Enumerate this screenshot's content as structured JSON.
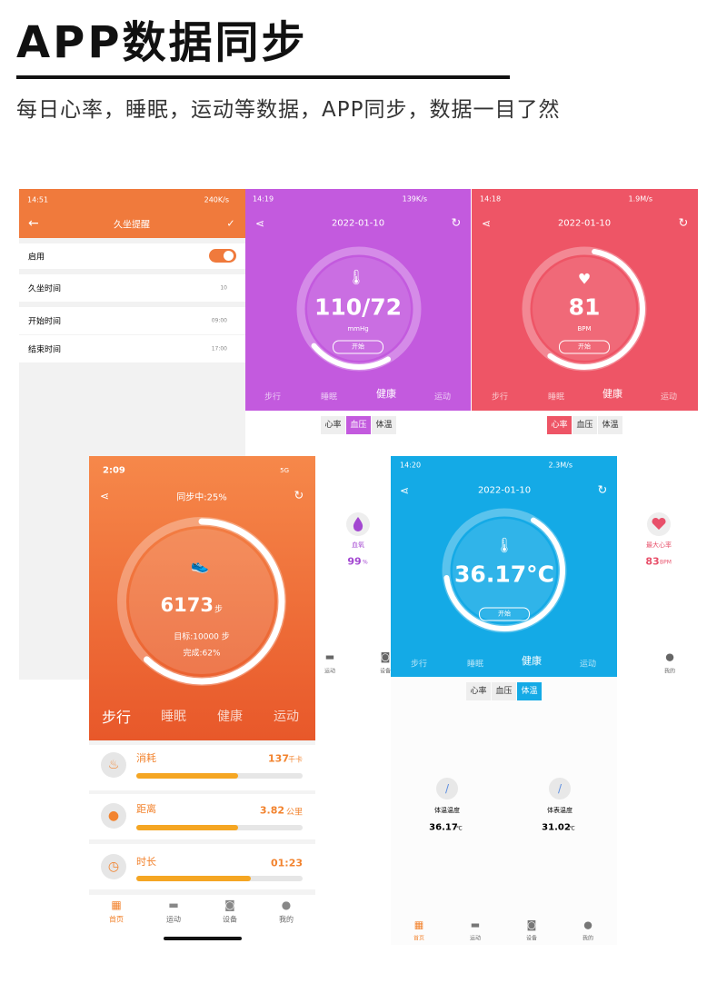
{
  "header": {
    "title": "APP数据同步",
    "subtitle": "每日心率，睡眠，运动等数据，APP同步，数据一目了然"
  },
  "settings_screen": {
    "status": {
      "time": "14:51",
      "speed": "240K/s"
    },
    "title": "久坐提醒",
    "rows": [
      {
        "label": "启用"
      },
      {
        "label": "久坐时间",
        "value": "10"
      },
      {
        "label": "开始时间",
        "value": "09:00"
      },
      {
        "label": "结束时间",
        "value": "17:00"
      }
    ]
  },
  "blood_pressure_screen": {
    "status": {
      "time": "14:19",
      "speed": "139K/s"
    },
    "date": "2022-01-10",
    "reading": "110/72",
    "unit": "mmHg",
    "button": "开始",
    "tabs": [
      "步行",
      "睡眠",
      "健康",
      "运动"
    ],
    "subtabs": [
      "心率",
      "血压",
      "体温"
    ]
  },
  "heart_rate_screen": {
    "status": {
      "time": "14:18",
      "speed": "1.9M/s"
    },
    "date": "2022-01-10",
    "reading": "81",
    "unit": "BPM",
    "button": "开始",
    "tabs": [
      "步行",
      "睡眠",
      "健康",
      "运动"
    ],
    "subtabs": [
      "心率",
      "血压",
      "体温"
    ]
  },
  "background_screen": {
    "cards": [
      {
        "label": "血氧",
        "value": "99",
        "unit": "%"
      },
      {
        "label": "最大心率",
        "value": "83",
        "unit": "BPM"
      }
    ],
    "nav": [
      "运动",
      "设备",
      "我的"
    ]
  },
  "steps_screen": {
    "status": {
      "time": "2:09",
      "network": "5G"
    },
    "sync": "同步中:25%",
    "steps": "6173",
    "steps_unit": "步",
    "goal": "目标:10000 步",
    "done": "完成:62%",
    "tabs": [
      "步行",
      "睡眠",
      "健康",
      "运动"
    ],
    "metrics": [
      {
        "label": "消耗",
        "value": "137",
        "unit": "千卡"
      },
      {
        "label": "距离",
        "value": "3.82",
        "unit": "公里"
      },
      {
        "label": "时长",
        "value": "01:23"
      }
    ],
    "nav": [
      "首页",
      "运动",
      "设备",
      "我的"
    ]
  },
  "temperature_screen": {
    "status": {
      "time": "14:20",
      "speed": "2.3M/s"
    },
    "date": "2022-01-10",
    "reading": "36.17°C",
    "button": "开始",
    "tabs": [
      "步行",
      "睡眠",
      "健康",
      "运动"
    ],
    "subtabs": [
      "心率",
      "血压",
      "体温"
    ],
    "cards": [
      {
        "label": "体温温度",
        "value": "36.17",
        "unit": "℃"
      },
      {
        "label": "体表温度",
        "value": "31.02",
        "unit": "℃"
      }
    ],
    "nav": [
      "首页",
      "运动",
      "设备",
      "我的"
    ]
  }
}
